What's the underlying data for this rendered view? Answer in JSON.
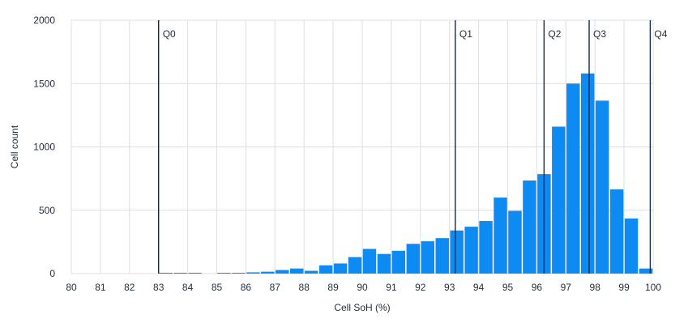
{
  "chart_data": {
    "type": "bar",
    "xlabel": "Cell SoH (%)",
    "ylabel": "Cell count",
    "xlim": [
      80,
      100
    ],
    "ylim": [
      0,
      2000
    ],
    "x_ticks": [
      "80",
      "81",
      "82",
      "83",
      "84",
      "85",
      "86",
      "87",
      "88",
      "89",
      "90",
      "91",
      "92",
      "93",
      "94",
      "95",
      "96",
      "97",
      "98",
      "99",
      "100"
    ],
    "y_ticks": [
      "0",
      "500",
      "1000",
      "1500",
      "2000"
    ],
    "grid": true,
    "bin_width": 0.5,
    "bins": [
      {
        "x": 83.0,
        "count": 3
      },
      {
        "x": 83.5,
        "count": 2
      },
      {
        "x": 84.0,
        "count": 2
      },
      {
        "x": 84.5,
        "count": 0
      },
      {
        "x": 85.0,
        "count": 3
      },
      {
        "x": 85.5,
        "count": 5
      },
      {
        "x": 86.0,
        "count": 10
      },
      {
        "x": 86.5,
        "count": 15
      },
      {
        "x": 87.0,
        "count": 28
      },
      {
        "x": 87.5,
        "count": 40
      },
      {
        "x": 88.0,
        "count": 22
      },
      {
        "x": 88.5,
        "count": 65
      },
      {
        "x": 89.0,
        "count": 80
      },
      {
        "x": 89.5,
        "count": 130
      },
      {
        "x": 90.0,
        "count": 195
      },
      {
        "x": 90.5,
        "count": 155
      },
      {
        "x": 91.0,
        "count": 180
      },
      {
        "x": 91.5,
        "count": 235
      },
      {
        "x": 92.0,
        "count": 255
      },
      {
        "x": 92.5,
        "count": 280
      },
      {
        "x": 93.0,
        "count": 340
      },
      {
        "x": 93.5,
        "count": 370
      },
      {
        "x": 94.0,
        "count": 415
      },
      {
        "x": 94.5,
        "count": 600
      },
      {
        "x": 95.0,
        "count": 495
      },
      {
        "x": 95.5,
        "count": 735
      },
      {
        "x": 96.0,
        "count": 785
      },
      {
        "x": 96.5,
        "count": 1160
      },
      {
        "x": 97.0,
        "count": 1500
      },
      {
        "x": 97.5,
        "count": 1580
      },
      {
        "x": 98.0,
        "count": 1365
      },
      {
        "x": 98.5,
        "count": 665
      },
      {
        "x": 99.0,
        "count": 435
      },
      {
        "x": 99.5,
        "count": 40
      }
    ],
    "markers": [
      {
        "label": "Q0",
        "x": 83.0
      },
      {
        "label": "Q1",
        "x": 93.2
      },
      {
        "label": "Q2",
        "x": 96.25
      },
      {
        "label": "Q3",
        "x": 97.8
      },
      {
        "label": "Q4",
        "x": 99.9
      }
    ]
  },
  "colors": {
    "bar": "#0d8bf2",
    "marker": "#0f2a4a",
    "grid": "#dcdfe3",
    "text": "#1f2d3d"
  }
}
